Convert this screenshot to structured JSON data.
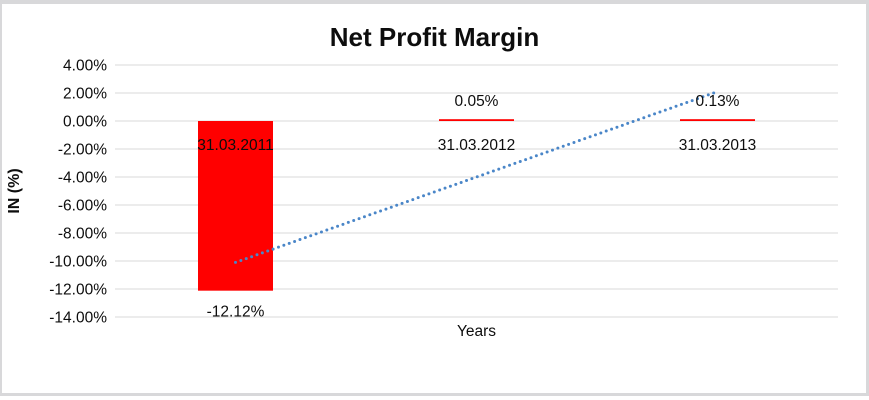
{
  "title": "Net Profit Margin",
  "chart_data": {
    "type": "bar",
    "title": "Net Profit Margin",
    "xlabel": "Years",
    "ylabel": "IN (%)",
    "categories": [
      "31.03.2011",
      "31.03.2012",
      "31.03.2013"
    ],
    "values": [
      -12.12,
      0.05,
      0.13
    ],
    "data_labels": [
      "-12.12%",
      "0.05%",
      "0.13%"
    ],
    "ylim": [
      -14,
      4
    ],
    "ytick_step": 2,
    "ytick_labels": [
      "4.00%",
      "2.00%",
      "0.00%",
      "-2.00%",
      "-4.00%",
      "-6.00%",
      "-8.00%",
      "-10.00%",
      "-12.00%",
      "-14.00%"
    ],
    "grid": true,
    "legend": false,
    "bar_color": "#FF0000",
    "gridline_color": "#D9D9D9",
    "text_color": "#0d0d0d",
    "trendline": {
      "type": "linear",
      "style": "dotted",
      "color": "#4A86C8",
      "start_value": -10.1,
      "end_value": 2.1
    }
  }
}
